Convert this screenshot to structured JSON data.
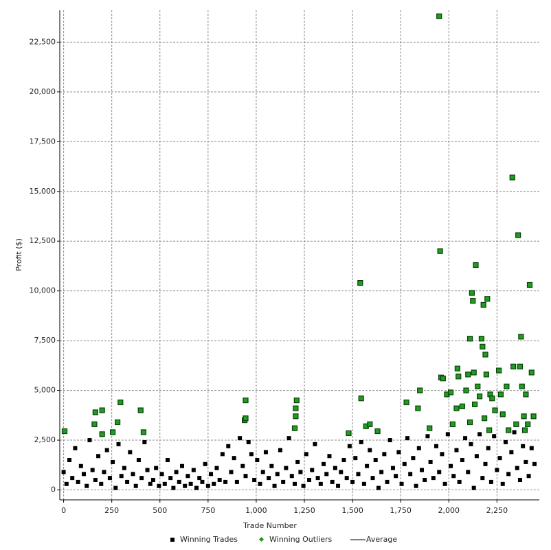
{
  "chart_data": {
    "type": "scatter",
    "x_label": "Trade Number",
    "y_label": "Profit ($)",
    "xlim": [
      -20,
      2470
    ],
    "ylim": [
      -500,
      24100
    ],
    "xticks": [
      0,
      250,
      500,
      750,
      {
        "value": 1000,
        "label": "1,000"
      },
      {
        "value": 1250,
        "label": "1,250"
      },
      {
        "value": 1500,
        "label": "1,500"
      },
      {
        "value": 1750,
        "label": "1,750"
      },
      {
        "value": 2000,
        "label": "2,000"
      },
      {
        "value": 2250,
        "label": "2,250"
      }
    ],
    "yticks": [
      0,
      {
        "value": 2500,
        "label": "2,500"
      },
      {
        "value": 5000,
        "label": "5,000"
      },
      {
        "value": 7500,
        "label": "7,500"
      },
      {
        "value": 10000,
        "label": "10,000"
      },
      {
        "value": 12500,
        "label": "12,500"
      },
      {
        "value": 15000,
        "label": "15,000"
      },
      {
        "value": 17500,
        "label": "17,500"
      },
      {
        "value": 20000,
        "label": "20,000"
      },
      {
        "value": 22500,
        "label": "22,500"
      }
    ],
    "grid": true,
    "series": [
      {
        "name": "Winning Trades",
        "color": "#000000",
        "marker": "square",
        "x": [
          0,
          15,
          30,
          45,
          60,
          75,
          90,
          105,
          120,
          135,
          150,
          165,
          180,
          195,
          210,
          225,
          240,
          255,
          270,
          285,
          300,
          315,
          330,
          345,
          360,
          375,
          390,
          405,
          420,
          435,
          450,
          465,
          480,
          495,
          510,
          525,
          540,
          555,
          570,
          585,
          600,
          615,
          630,
          645,
          660,
          675,
          690,
          705,
          720,
          735,
          750,
          765,
          780,
          795,
          810,
          825,
          840,
          855,
          870,
          885,
          900,
          915,
          930,
          945,
          960,
          975,
          990,
          1005,
          1020,
          1035,
          1050,
          1065,
          1080,
          1095,
          1110,
          1125,
          1140,
          1155,
          1170,
          1185,
          1200,
          1215,
          1230,
          1245,
          1260,
          1275,
          1290,
          1305,
          1320,
          1335,
          1350,
          1365,
          1380,
          1395,
          1410,
          1425,
          1440,
          1455,
          1470,
          1485,
          1500,
          1515,
          1530,
          1545,
          1560,
          1575,
          1590,
          1605,
          1620,
          1635,
          1650,
          1665,
          1680,
          1695,
          1710,
          1725,
          1740,
          1755,
          1770,
          1785,
          1800,
          1815,
          1830,
          1845,
          1860,
          1875,
          1890,
          1905,
          1920,
          1935,
          1950,
          1965,
          1980,
          1995,
          2010,
          2025,
          2040,
          2055,
          2070,
          2085,
          2100,
          2115,
          2130,
          2145,
          2160,
          2175,
          2190,
          2205,
          2220,
          2235,
          2250,
          2265,
          2280,
          2295,
          2310,
          2325,
          2340,
          2355,
          2370,
          2385,
          2400,
          2415,
          2430,
          2445
        ],
        "y": [
          900,
          300,
          1500,
          600,
          2100,
          400,
          1200,
          800,
          200,
          2500,
          1000,
          500,
          1700,
          300,
          900,
          2000,
          600,
          1400,
          100,
          2300,
          700,
          1100,
          400,
          1900,
          800,
          200,
          1500,
          600,
          2400,
          1000,
          300,
          500,
          1100,
          200,
          800,
          300,
          1500,
          600,
          100,
          900,
          400,
          1200,
          200,
          700,
          300,
          1000,
          100,
          600,
          400,
          1300,
          200,
          800,
          300,
          1100,
          500,
          1800,
          400,
          2200,
          900,
          1600,
          400,
          2600,
          1200,
          700,
          2400,
          1800,
          500,
          1500,
          300,
          900,
          1900,
          600,
          1200,
          200,
          800,
          2000,
          400,
          1100,
          2600,
          700,
          300,
          1400,
          900,
          200,
          1800,
          500,
          1000,
          2300,
          600,
          300,
          1300,
          800,
          1700,
          400,
          1100,
          200,
          900,
          1500,
          600,
          2200,
          400,
          1600,
          800,
          2400,
          300,
          1200,
          2000,
          600,
          1500,
          100,
          900,
          1800,
          400,
          2500,
          1100,
          700,
          1900,
          300,
          1300,
          2600,
          800,
          1600,
          200,
          2100,
          1000,
          500,
          2700,
          1400,
          600,
          2200,
          900,
          1800,
          300,
          2800,
          1200,
          700,
          2000,
          400,
          1500,
          2600,
          900,
          2300,
          100,
          1700,
          2800,
          600,
          1300,
          2100,
          400,
          2700,
          1000,
          1600,
          300,
          2400,
          800,
          1900,
          2900,
          1100,
          500,
          2200,
          1400,
          700,
          2100,
          1300
        ]
      },
      {
        "name": "Winning Outliers",
        "color": "#1e9e1e",
        "marker": "diamond",
        "x": [
          5,
          160,
          165,
          200,
          200,
          255,
          280,
          295,
          400,
          415,
          940,
          945,
          945,
          1200,
          1205,
          1205,
          1210,
          1480,
          1540,
          1545,
          1570,
          1590,
          1630,
          1780,
          1840,
          1850,
          1900,
          1950,
          1955,
          1960,
          1970,
          1990,
          2010,
          2020,
          2040,
          2045,
          2050,
          2070,
          2090,
          2100,
          2110,
          2110,
          2120,
          2125,
          2130,
          2135,
          2140,
          2150,
          2160,
          2170,
          2175,
          2180,
          2185,
          2190,
          2195,
          2200,
          2210,
          2215,
          2225,
          2240,
          2260,
          2270,
          2280,
          2300,
          2310,
          2330,
          2335,
          2350,
          2360,
          2370,
          2375,
          2380,
          2390,
          2395,
          2400,
          2410,
          2420,
          2430,
          2440
        ],
        "y": [
          2950,
          3300,
          3900,
          4000,
          2800,
          2900,
          3400,
          4400,
          4000,
          2900,
          3500,
          3600,
          4500,
          3100,
          3700,
          4100,
          4500,
          2850,
          10400,
          4600,
          3200,
          3300,
          2950,
          4400,
          4100,
          5000,
          3100,
          23800,
          12000,
          5650,
          5600,
          4800,
          4900,
          3300,
          4100,
          6100,
          5700,
          4200,
          5000,
          5800,
          3400,
          7600,
          9900,
          9500,
          5900,
          4300,
          11300,
          5200,
          4700,
          7600,
          7200,
          9300,
          3600,
          6800,
          5800,
          9600,
          3000,
          4800,
          4600,
          4000,
          6000,
          4800,
          3800,
          5200,
          3000,
          15700,
          6200,
          3300,
          12800,
          6200,
          7700,
          5200,
          3700,
          3000,
          4800,
          3300,
          10300,
          5900,
          3700
        ]
      },
      {
        "name": "Average",
        "color": "#000000",
        "marker": "line",
        "x": [],
        "y": []
      }
    ]
  }
}
